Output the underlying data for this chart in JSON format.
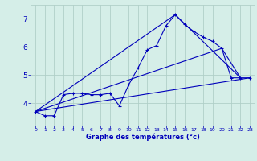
{
  "title": "Graphe des températures (°c)",
  "bg_color": "#d5eee8",
  "plot_bg": "#d5eee8",
  "grid_color": "#b0cfc8",
  "line_color": "#0000bb",
  "text_color": "#0000bb",
  "xlim": [
    -0.5,
    23.5
  ],
  "ylim": [
    3.2,
    7.5
  ],
  "yticks": [
    4,
    5,
    6,
    7
  ],
  "xticks": [
    0,
    1,
    2,
    3,
    4,
    5,
    6,
    7,
    8,
    9,
    10,
    11,
    12,
    13,
    14,
    15,
    16,
    17,
    18,
    19,
    20,
    21,
    22,
    23
  ],
  "curve": {
    "x": [
      0,
      1,
      2,
      3,
      4,
      5,
      6,
      7,
      8,
      9,
      10,
      11,
      12,
      13,
      14,
      15,
      16,
      17,
      18,
      19,
      20,
      21,
      22,
      23
    ],
    "y": [
      3.7,
      3.55,
      3.55,
      4.3,
      4.35,
      4.35,
      4.3,
      4.3,
      4.35,
      3.9,
      4.65,
      5.25,
      5.9,
      6.05,
      6.75,
      7.15,
      6.8,
      6.55,
      6.35,
      6.2,
      5.95,
      4.9,
      4.9,
      4.9
    ]
  },
  "line1": {
    "x": [
      0,
      23
    ],
    "y": [
      3.7,
      4.9
    ]
  },
  "line2": {
    "x": [
      0,
      15,
      22
    ],
    "y": [
      3.7,
      7.15,
      4.9
    ]
  },
  "line3": {
    "x": [
      0,
      20,
      22
    ],
    "y": [
      3.7,
      5.95,
      4.9
    ]
  }
}
